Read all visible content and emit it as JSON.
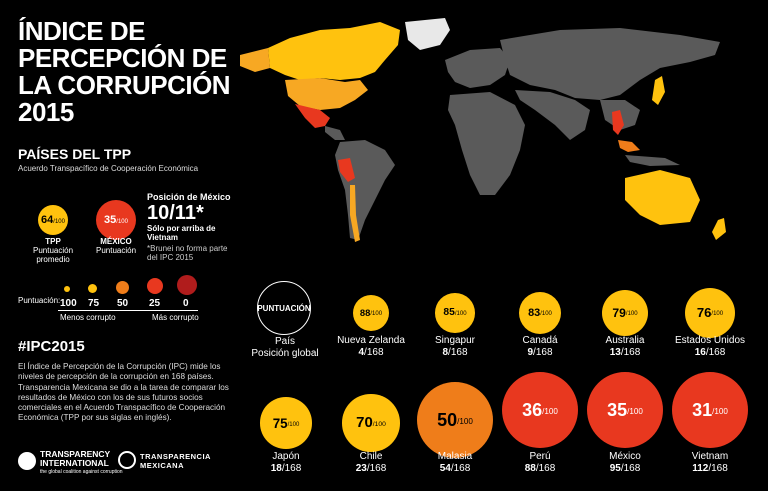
{
  "title_lines": [
    "ÍNDICE DE",
    "PERCEPCIÓN DE",
    "LA CORRUPCIÓN",
    "2015"
  ],
  "subtitle": "PAÍSES DEL TPP",
  "subsubtitle": "Acuerdo Transpacífico de Cooperación Económica",
  "tpp": {
    "score": "64",
    "den": "/100",
    "label": "TPP",
    "sublabel": "Puntuación promedio"
  },
  "mexico": {
    "score": "35",
    "den": "/100",
    "label": "MÉXICO",
    "sublabel": "Puntuación"
  },
  "position": {
    "heading": "Posición de México",
    "value": "10/11*",
    "note1": "Sólo por arriba de Vietnam",
    "note2a": "*Brunei no forma parte",
    "note2b": "del IPC 2015"
  },
  "scale": {
    "label": "Puntuación:",
    "ticks": [
      "100",
      "75",
      "50",
      "25",
      "0"
    ],
    "less": "Menos corrupto",
    "more": "Más corrupto"
  },
  "legend_circle": {
    "label": "PUNTUACIÓN",
    "line1": "País",
    "line2": "Posición global"
  },
  "countries": [
    {
      "name": "Nueva Zelanda",
      "score": "88",
      "rank": "4",
      "total": "/168",
      "den": "/100"
    },
    {
      "name": "Singapur",
      "score": "85",
      "rank": "8",
      "total": "/168",
      "den": "/100"
    },
    {
      "name": "Canadá",
      "score": "83",
      "rank": "9",
      "total": "/168",
      "den": "/100"
    },
    {
      "name": "Australia",
      "score": "79",
      "rank": "13",
      "total": "/168",
      "den": "/100"
    },
    {
      "name": "Estados Unidos",
      "score": "76",
      "rank": "16",
      "total": "/168",
      "den": "/100"
    },
    {
      "name": "Japón",
      "score": "75",
      "rank": "18",
      "total": "/168",
      "den": "/100"
    },
    {
      "name": "Chile",
      "score": "70",
      "rank": "23",
      "total": "/168",
      "den": "/100"
    },
    {
      "name": "Malasia",
      "score": "50",
      "rank": "54",
      "total": "/168",
      "den": "/100"
    },
    {
      "name": "Perú",
      "score": "36",
      "rank": "88",
      "total": "/168",
      "den": "/100"
    },
    {
      "name": "México",
      "score": "35",
      "rank": "95",
      "total": "/168",
      "den": "/100"
    },
    {
      "name": "Vietnam",
      "score": "31",
      "rank": "112",
      "total": "/168",
      "den": "/100"
    }
  ],
  "hashtag": "#IPC2015",
  "paragraph": "El Índice de Percepción de la Corrupción (IPC) mide los niveles de percepción de la corrupción en 168 países. Transparencia Mexicana se dio a la tarea de comparar los resultados de México con los de sus futuros socios comerciales en el Acuerdo Transpacífico de Cooperación Económica (TPP por sus siglas en inglés).",
  "logo1": {
    "line1": "TRANSPARENCY",
    "line2": "INTERNATIONAL",
    "tagline": "the global coalition against corruption"
  },
  "logo2": {
    "line1": "TRANSPARENCIA",
    "line2": "MEXICANA"
  },
  "colors": {
    "yellow": "#ffc20e",
    "lightorange": "#f7a823",
    "orange": "#ef7d1a",
    "red": "#e8381f",
    "land": "#5a5a5a"
  }
}
